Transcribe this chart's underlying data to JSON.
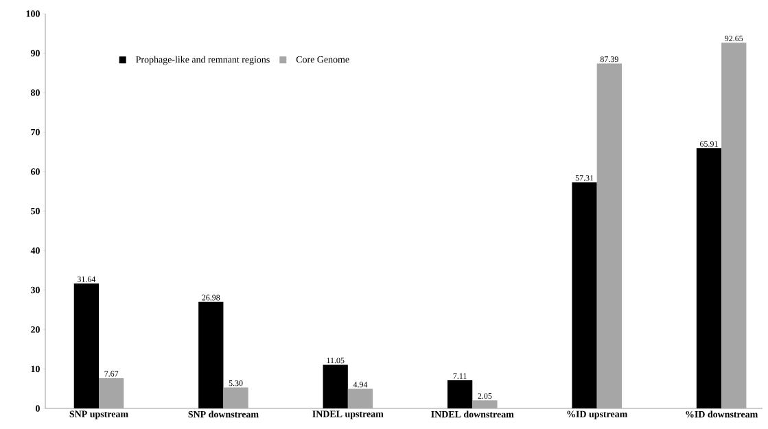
{
  "chart_data": {
    "type": "bar",
    "categories": [
      "SNP upstream",
      "SNP downstream",
      "INDEL upstream",
      "INDEL downstream",
      "%ID upstream",
      "%ID downstream"
    ],
    "series": [
      {
        "name": "Prophage-like and remnant regions",
        "color": "#000000",
        "values": [
          31.64,
          26.98,
          11.05,
          7.11,
          57.31,
          65.91
        ],
        "value_labels": [
          "31.64",
          "26.98",
          "11.05",
          "7.11",
          "57.31",
          "65.91"
        ]
      },
      {
        "name": "Core Genome",
        "color": "#a6a6a6",
        "values": [
          7.67,
          5.3,
          4.94,
          2.05,
          87.39,
          92.65
        ],
        "value_labels": [
          "7.67",
          "5.30",
          "4.94",
          "2.05",
          "87.39",
          "92.65"
        ]
      }
    ],
    "ylim": [
      0,
      100
    ],
    "yticks": [
      0,
      10,
      20,
      30,
      40,
      50,
      60,
      70,
      80,
      90,
      100
    ],
    "grid": false,
    "legend": "top left"
  }
}
